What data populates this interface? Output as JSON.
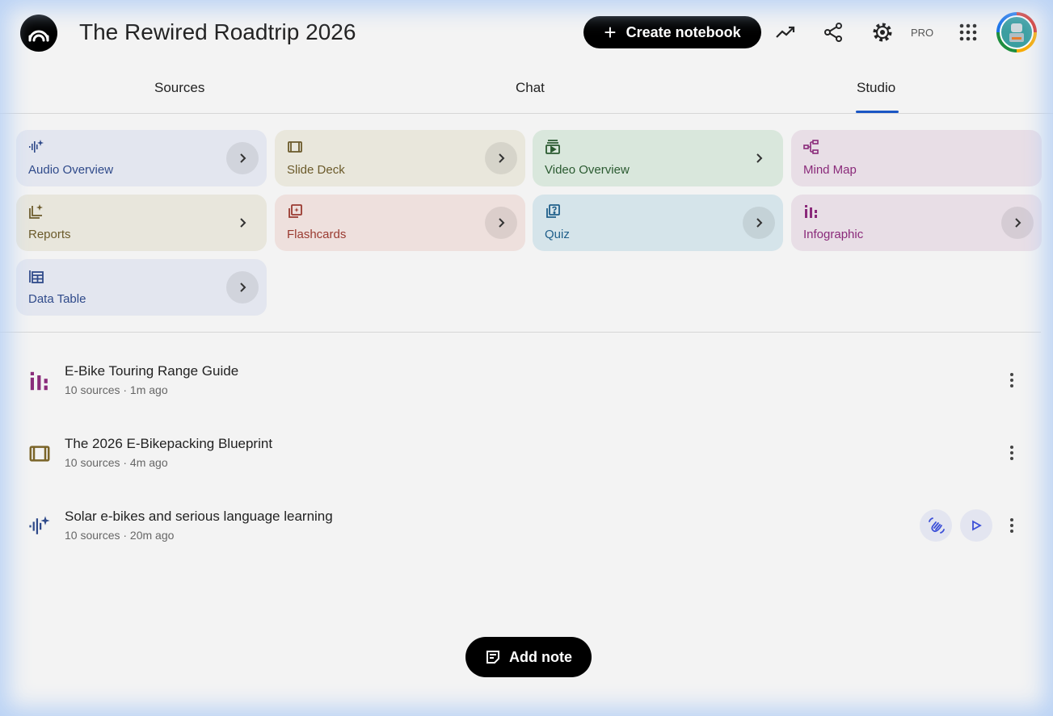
{
  "header": {
    "title": "The Rewired Roadtrip 2026",
    "create_label": "Create notebook",
    "pro_label": "PRO"
  },
  "tabs": [
    {
      "label": "Sources"
    },
    {
      "label": "Chat"
    },
    {
      "label": "Studio",
      "selected": true
    }
  ],
  "studio_tools": [
    {
      "label": "Audio Overview",
      "icon": "audio-waveform-icon",
      "bg": "#e3e6ef",
      "color": "#2f4a8a"
    },
    {
      "label": "Slide Deck",
      "icon": "slides-icon",
      "bg": "#e9e7dc",
      "color": "#6b5a2a"
    },
    {
      "label": "Video Overview",
      "icon": "video-icon",
      "bg": "#d9e7dc",
      "color": "#2a5a30"
    },
    {
      "label": "Mind Map",
      "icon": "mind-map-icon",
      "bg": "#e8dee6",
      "color": "#8a2a7a"
    },
    {
      "label": "Reports",
      "icon": "reports-icon",
      "bg": "#e8e6dc",
      "color": "#6b5a2a"
    },
    {
      "label": "Flashcards",
      "icon": "flashcards-icon",
      "bg": "#eee0dd",
      "color": "#9a3a30"
    },
    {
      "label": "Quiz",
      "icon": "quiz-icon",
      "bg": "#d5e4ea",
      "color": "#1f5f8a"
    },
    {
      "label": "Infographic",
      "icon": "infographic-icon",
      "bg": "#e8dee6",
      "color": "#8a2a7a"
    },
    {
      "label": "Data Table",
      "icon": "data-table-icon",
      "bg": "#e3e6ef",
      "color": "#2f4a8a"
    }
  ],
  "notes": [
    {
      "title": "E-Bike Touring Range Guide",
      "meta": "10 sources · 1m ago",
      "icon": "infographic-icon"
    },
    {
      "title": "The 2026 E-Bikepacking Blueprint",
      "meta": "10 sources · 4m ago",
      "icon": "slides-icon"
    },
    {
      "title": "Solar e-bikes and serious language learning",
      "meta": "10 sources · 20m ago",
      "icon": "audio-waveform-icon"
    }
  ],
  "add_note_label": "Add note"
}
